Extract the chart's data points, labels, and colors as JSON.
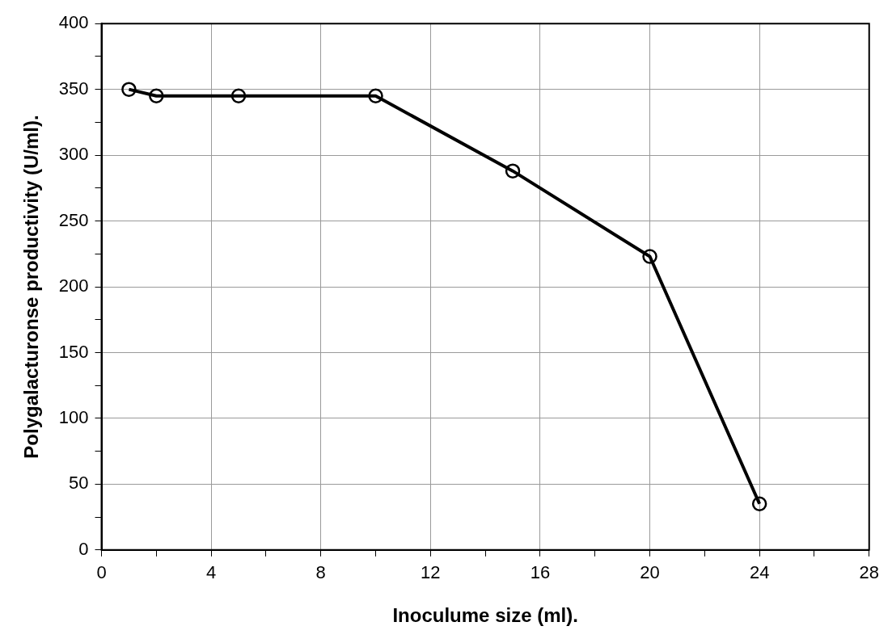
{
  "chart_data": {
    "type": "line",
    "xlabel": "Inoculume size (ml).",
    "ylabel": "Polygalacturonse productivity (U/ml).",
    "x": [
      1,
      2,
      5,
      10,
      15,
      20,
      24
    ],
    "series": [
      {
        "color": "#000000",
        "values": [
          350,
          345,
          345,
          345,
          288,
          223,
          35
        ]
      }
    ],
    "xlim": [
      0,
      28
    ],
    "xticks": [
      0,
      {
        "value": 2,
        "label": null
      },
      4,
      {
        "value": 6,
        "label": null
      },
      8,
      {
        "value": 10,
        "label": null
      },
      12,
      {
        "value": 14,
        "label": null
      },
      16,
      {
        "value": 18,
        "label": null
      },
      20,
      {
        "value": 22,
        "label": null
      },
      24,
      {
        "value": 26,
        "label": null
      },
      28
    ],
    "ylim": [
      0,
      400
    ],
    "yticks": [
      0,
      {
        "value": 25,
        "label": null
      },
      50,
      {
        "value": 75,
        "label": null
      },
      100,
      {
        "value": 125,
        "label": null
      },
      150,
      {
        "value": 175,
        "label": null
      },
      200,
      {
        "value": 225,
        "label": null
      },
      250,
      {
        "value": 275,
        "label": null
      },
      300,
      {
        "value": 325,
        "label": null
      },
      350,
      {
        "value": 375,
        "label": null
      },
      400
    ],
    "grid": true,
    "legend": false,
    "marker": "circle",
    "line_style": "solid"
  }
}
